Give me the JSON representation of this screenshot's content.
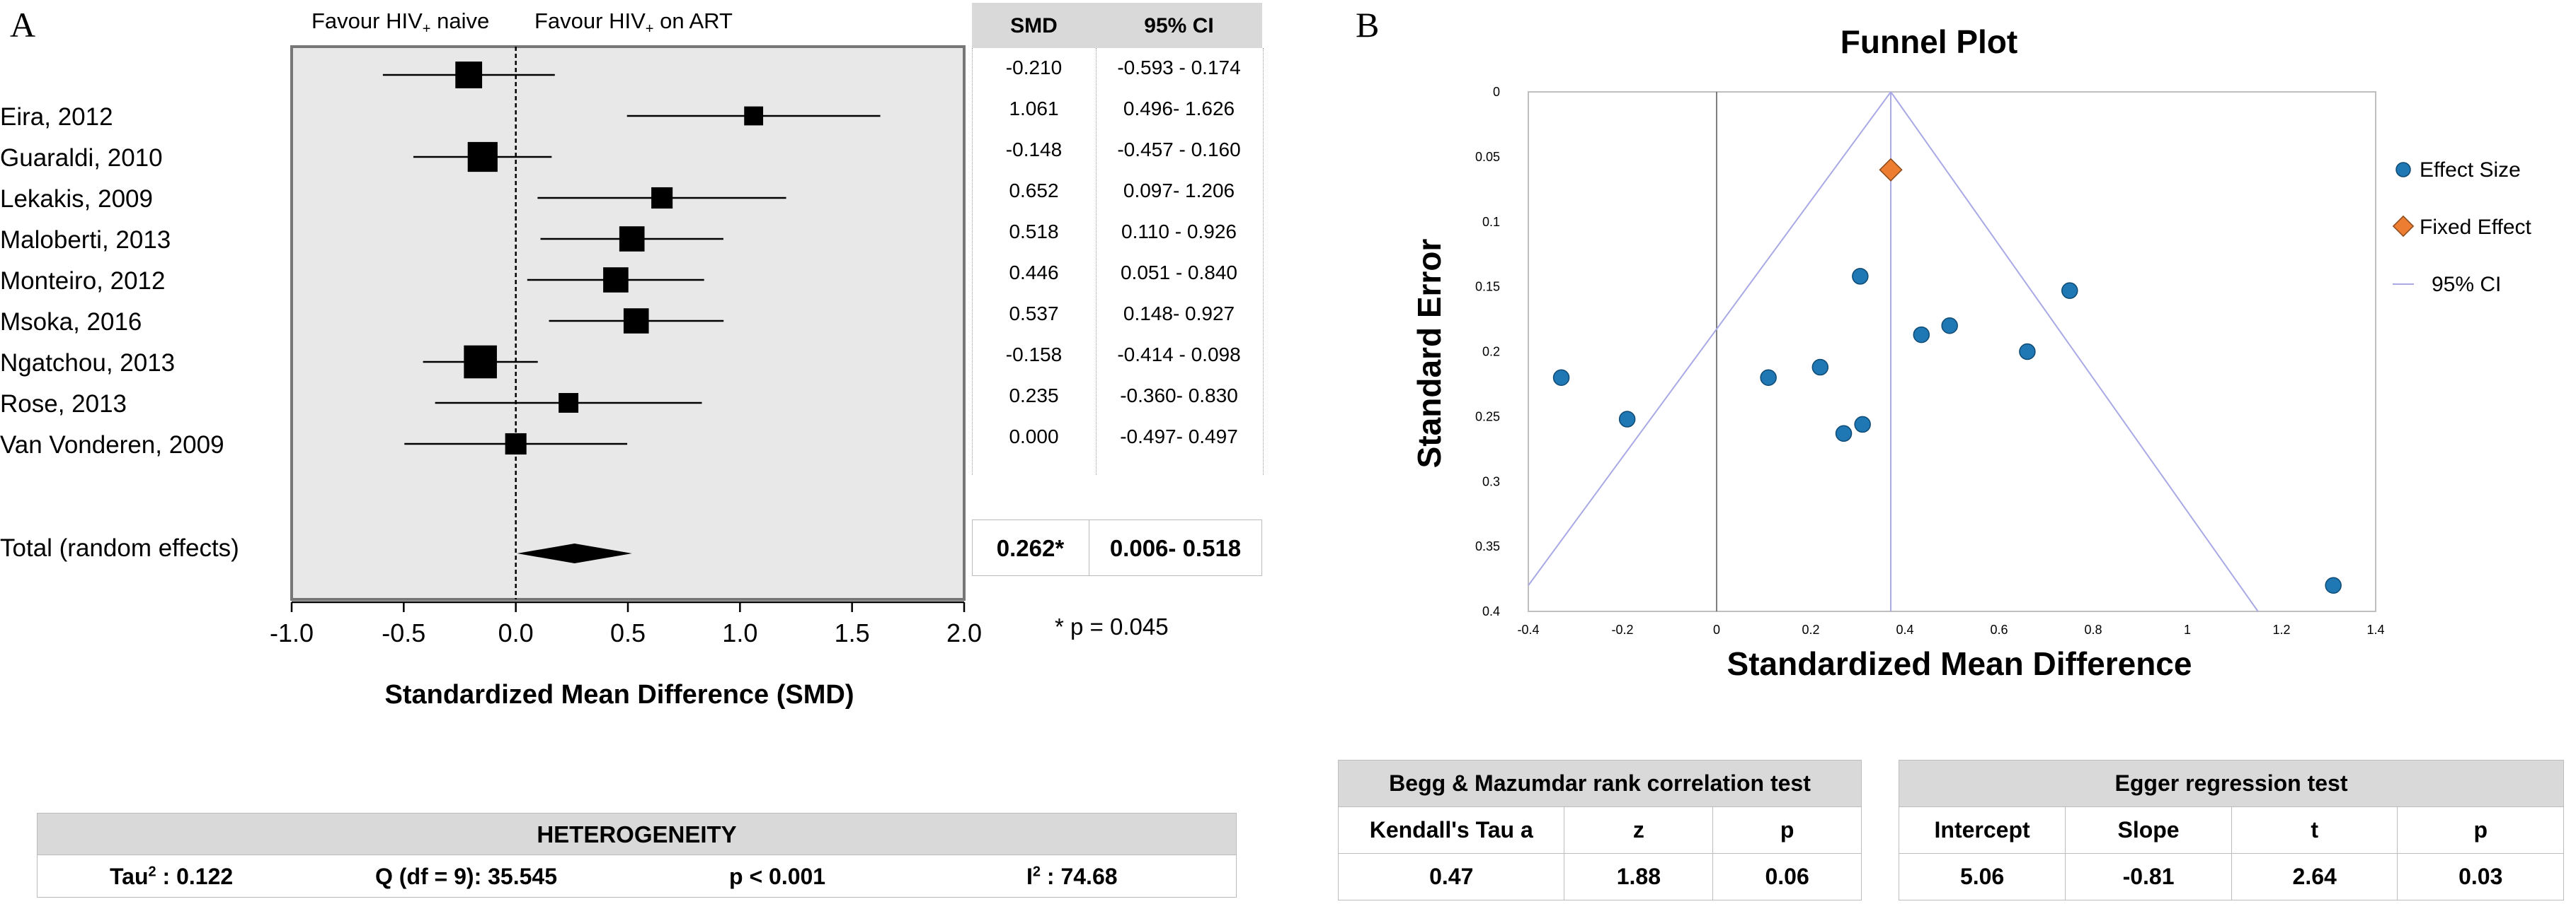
{
  "panel_a": {
    "letter": "A",
    "favour_left": "Favour HIV",
    "favour_left_sub": "+",
    "favour_left_tail": " naive",
    "favour_right": "Favour HIV",
    "favour_right_sub": "+",
    "favour_right_tail": " on ART",
    "col_smd": "SMD",
    "col_ci": "95% CI",
    "studies": [
      {
        "name": "",
        "smd": "-0.210",
        "ci": "-0.593 - 0.174"
      },
      {
        "name": "Eira, 2012",
        "smd": "1.061",
        "ci": "0.496- 1.626"
      },
      {
        "name": "Guaraldi, 2010",
        "smd": "-0.148",
        "ci": "-0.457 - 0.160"
      },
      {
        "name": "Lekakis, 2009",
        "smd": "0.652",
        "ci": "0.097- 1.206"
      },
      {
        "name": "Maloberti, 2013",
        "smd": "0.518",
        "ci": "0.110 - 0.926"
      },
      {
        "name": "Monteiro, 2012",
        "smd": "0.446",
        "ci": "0.051 - 0.840"
      },
      {
        "name": "Msoka, 2016",
        "smd": "0.537",
        "ci": "0.148- 0.927"
      },
      {
        "name": "Ngatchou, 2013",
        "smd": "-0.158",
        "ci": "-0.414 - 0.098"
      },
      {
        "name": "Rose, 2013",
        "smd": "0.235",
        "ci": "-0.360- 0.830"
      },
      {
        "name": "Van Vonderen, 2009",
        "smd": "0.000",
        "ci": "-0.497- 0.497"
      }
    ],
    "total_label": "Total (random effects)",
    "total_smd": "0.262*",
    "total_ci": "0.006- 0.518",
    "p_note": "* p = 0.045",
    "xlabel": "Standardized Mean Difference (SMD)",
    "heterogeneity": {
      "title": "HETEROGENEITY",
      "tau": "Tau",
      "tau_sup": "2",
      "tau_val": " : 0.122",
      "q": "Q (df = 9): 35.545",
      "p": "p < 0.001",
      "i": "I",
      "i_sup": "2",
      "i_val": " : 74.68"
    }
  },
  "panel_b": {
    "letter": "B",
    "title": "Funnel Plot",
    "xlabel": "Standardized Mean Difference",
    "ylabel": "Standard Error",
    "legend": [
      "Effect Size",
      "Fixed Effect",
      "95% CI"
    ],
    "begg": {
      "title": "Begg & Mazumdar rank correlation test",
      "headers": [
        "Kendall's Tau a",
        "z",
        "p"
      ],
      "values": [
        "0.47",
        "1.88",
        "0.06"
      ]
    },
    "egger": {
      "title": "Egger regression test",
      "headers": [
        "Intercept",
        "Slope",
        "t",
        "p"
      ],
      "values": [
        "5.06",
        "-0.81",
        "2.64",
        "0.03"
      ]
    }
  },
  "colors": {
    "forest_bg": "#e8e8e8",
    "point": "#1f78b4",
    "fixed": "#ed7d31",
    "ci_line": "#a9a9e6"
  },
  "chart_data": [
    {
      "type": "forest",
      "xlim": [
        -1.0,
        2.0
      ],
      "xticks": [
        "-1.0",
        "-0.5",
        "0.0",
        "0.5",
        "1.0",
        "1.5",
        "2.0"
      ],
      "xtick_values": [
        -1.0,
        -0.5,
        0.0,
        0.5,
        1.0,
        1.5,
        2.0
      ],
      "xlabel": "Standardized Mean Difference (SMD)",
      "rows": [
        {
          "smd": -0.21,
          "lo": -0.593,
          "hi": 0.174,
          "weight": 0.9
        },
        {
          "smd": 1.061,
          "lo": 0.496,
          "hi": 1.626,
          "weight": 0.4
        },
        {
          "smd": -0.148,
          "lo": -0.457,
          "hi": 0.16,
          "weight": 1.1
        },
        {
          "smd": 0.652,
          "lo": 0.097,
          "hi": 1.206,
          "weight": 0.55
        },
        {
          "smd": 0.518,
          "lo": 0.11,
          "hi": 0.926,
          "weight": 0.8
        },
        {
          "smd": 0.446,
          "lo": 0.051,
          "hi": 0.84,
          "weight": 0.8
        },
        {
          "smd": 0.537,
          "lo": 0.148,
          "hi": 0.927,
          "weight": 0.8
        },
        {
          "smd": -0.158,
          "lo": -0.414,
          "hi": 0.098,
          "weight": 1.3
        },
        {
          "smd": 0.235,
          "lo": -0.36,
          "hi": 0.83,
          "weight": 0.45
        },
        {
          "smd": 0.0,
          "lo": -0.497,
          "hi": 0.497,
          "weight": 0.55
        }
      ],
      "total": {
        "smd": 0.262,
        "lo": 0.006,
        "hi": 0.518
      }
    },
    {
      "type": "scatter",
      "title": "Funnel Plot",
      "xlabel": "Standardized Mean Difference",
      "ylabel": "Standard Error",
      "xlim": [
        -0.4,
        1.4
      ],
      "ylim": [
        0,
        0.4
      ],
      "y_inverted": true,
      "xticks": [
        "-0.4",
        "-0.2",
        "0",
        "0.2",
        "0.4",
        "0.6",
        "0.8",
        "1",
        "1.2",
        "1.4"
      ],
      "xtick_values": [
        -0.4,
        -0.2,
        0,
        0.2,
        0.4,
        0.6,
        0.8,
        1,
        1.2,
        1.4
      ],
      "yticks": [
        "0",
        "0.05",
        "0.1",
        "0.15",
        "0.2",
        "0.25",
        "0.3",
        "0.35",
        "0.4"
      ],
      "ytick_values": [
        0,
        0.05,
        0.1,
        0.15,
        0.2,
        0.25,
        0.3,
        0.35,
        0.4
      ],
      "effect_size": [
        {
          "x": -0.33,
          "y": 0.22
        },
        {
          "x": -0.19,
          "y": 0.252
        },
        {
          "x": 0.11,
          "y": 0.22
        },
        {
          "x": 0.22,
          "y": 0.212
        },
        {
          "x": 0.27,
          "y": 0.263
        },
        {
          "x": 0.31,
          "y": 0.256
        },
        {
          "x": 0.305,
          "y": 0.142
        },
        {
          "x": 0.435,
          "y": 0.187
        },
        {
          "x": 0.495,
          "y": 0.18
        },
        {
          "x": 0.66,
          "y": 0.2
        },
        {
          "x": 0.75,
          "y": 0.153
        },
        {
          "x": 1.31,
          "y": 0.38
        }
      ],
      "fixed_effect": {
        "x": 0.37,
        "y": 0.06
      },
      "ci_apex": {
        "x": 0.37,
        "y": 0
      },
      "ci_left_end": {
        "x": -0.4,
        "y": 0.38
      },
      "ci_right_end": {
        "x": 1.15,
        "y": 0.4
      },
      "legend": [
        "Effect Size",
        "Fixed Effect",
        "95% CI"
      ],
      "legend_position": "right"
    }
  ]
}
